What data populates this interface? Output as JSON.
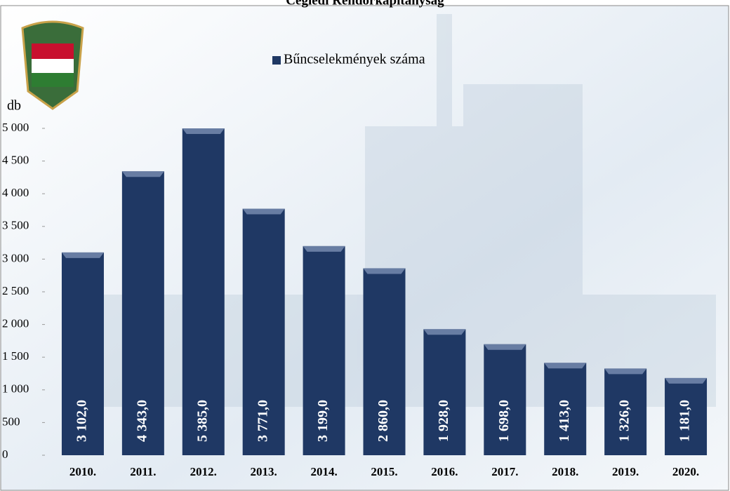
{
  "chart_data": {
    "type": "bar",
    "title": "Ceglédi Rendőrkapitányság",
    "y_label": "db",
    "categories": [
      "2010.",
      "2011.",
      "2012.",
      "2013.",
      "2014.",
      "2015.",
      "2016.",
      "2017.",
      "2018.",
      "2019.",
      "2020."
    ],
    "series": [
      {
        "name": "Bűncselekmények száma",
        "color": "#1f3864",
        "values": [
          3102,
          4343,
          5385,
          3771,
          3199,
          2860,
          1928,
          1698,
          1413,
          1326,
          1181
        ],
        "value_labels": [
          "3 102,0",
          "4 343,0",
          "5 385,0",
          "3 771,0",
          "3 199,0",
          "2 860,0",
          "1 928,0",
          "1 698,0",
          "1 413,0",
          "1 326,0",
          "1 181,0"
        ]
      }
    ],
    "ylim": [
      0,
      5000
    ],
    "yticks": [
      0,
      500,
      {
        "value": 1000,
        "label": "1 000"
      },
      {
        "value": 1500,
        "label": "1 500"
      },
      {
        "value": 2000,
        "label": "2 000"
      },
      {
        "value": 2500,
        "label": "2 500"
      },
      {
        "value": 3000,
        "label": "3 000"
      },
      {
        "value": 3500,
        "label": "3 500"
      },
      {
        "value": 4000,
        "label": "4 000"
      },
      {
        "value": 4500,
        "label": "4 500"
      },
      {
        "value": 5000,
        "label": "5 000"
      }
    ],
    "grid": false
  }
}
